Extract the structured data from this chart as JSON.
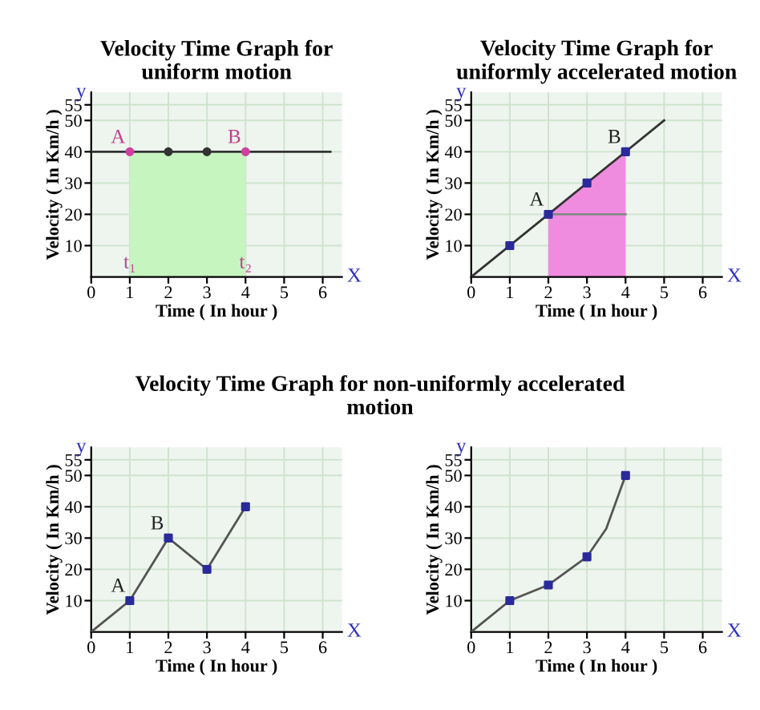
{
  "chart_data": [
    {
      "type": "line",
      "title": "Velocity Time Graph for\nuniform motion",
      "xlabel": "Time ( In hour )",
      "ylabel": "Velocity ( In Km/h )",
      "xlim": [
        0,
        6.5
      ],
      "ylim": [
        0,
        59
      ],
      "xticks": [
        0,
        1,
        2,
        3,
        4,
        5,
        6
      ],
      "yticks": [
        10,
        20,
        30,
        40,
        50,
        55
      ],
      "grid": true,
      "series": [
        {
          "type": "area",
          "x": [
            1,
            4
          ],
          "values": [
            40,
            40
          ],
          "color": "#c6f5c0"
        },
        {
          "x": [
            0,
            6.2
          ],
          "values": [
            40,
            40
          ],
          "color": "#333333",
          "marker": "none"
        },
        {
          "type": "scatter",
          "x": [
            1,
            2,
            3,
            4
          ],
          "values": [
            40,
            40,
            40,
            40
          ],
          "colors": [
            "#d040a0",
            "#333333",
            "#333333",
            "#d040a0"
          ],
          "marker": "circle"
        }
      ],
      "annotations": [
        {
          "text": "A",
          "x": 1,
          "y": 40
        },
        {
          "text": "B",
          "x": 4,
          "y": 40
        },
        {
          "text": "t₁",
          "x": 1,
          "y": 0
        },
        {
          "text": "t₂",
          "x": 4,
          "y": 0
        },
        "y",
        "X"
      ]
    },
    {
      "type": "line",
      "title": "Velocity Time Graph for\nuniformly accelerated motion",
      "xlabel": "Time ( In hour )",
      "ylabel": "Velocity ( In Km/h )",
      "xlim": [
        0,
        6.5
      ],
      "ylim": [
        0,
        59
      ],
      "xticks": [
        0,
        1,
        2,
        3,
        4,
        5,
        6
      ],
      "yticks": [
        10,
        20,
        30,
        40,
        50,
        55
      ],
      "grid": true,
      "series": [
        {
          "type": "area",
          "x": [
            2,
            4
          ],
          "values": [
            20,
            40
          ],
          "color": "#f08ce0"
        },
        {
          "x": [
            2,
            4
          ],
          "values": [
            20,
            20
          ],
          "color": "#888888",
          "marker": "none"
        },
        {
          "x": [
            0,
            5
          ],
          "values": [
            0,
            50
          ],
          "color": "#333333",
          "marker": "none"
        },
        {
          "type": "scatter",
          "x": [
            1,
            2,
            3,
            4
          ],
          "values": [
            10,
            20,
            30,
            40
          ],
          "color": "#2a2a9a",
          "marker": "square"
        }
      ],
      "annotations": [
        {
          "text": "A",
          "x": 2,
          "y": 20
        },
        {
          "text": "B",
          "x": 4,
          "y": 40
        },
        "y",
        "X"
      ]
    },
    {
      "type": "line",
      "title": "Velocity Time Graph for non-uniformly accelerated\nmotion",
      "xlabel": "Time ( In hour )",
      "ylabel": "Velocity ( In Km/h )",
      "xlim": [
        0,
        6.5
      ],
      "ylim": [
        0,
        59
      ],
      "xticks": [
        0,
        1,
        2,
        3,
        4,
        5,
        6
      ],
      "yticks": [
        10,
        20,
        30,
        40,
        50,
        55
      ],
      "grid": true,
      "series": [
        {
          "x": [
            0,
            1,
            2,
            3,
            4
          ],
          "values": [
            0,
            10,
            30,
            20,
            40
          ],
          "color": "#555555",
          "marker": "none"
        },
        {
          "type": "scatter",
          "x": [
            1,
            2,
            3,
            4
          ],
          "values": [
            10,
            30,
            20,
            40
          ],
          "color": "#2a2a9a",
          "marker": "square"
        }
      ],
      "annotations": [
        {
          "text": "A",
          "x": 1,
          "y": 10
        },
        {
          "text": "B",
          "x": 2,
          "y": 30
        },
        "y",
        "X"
      ]
    },
    {
      "type": "line",
      "xlabel": "Time ( In hour )",
      "ylabel": "Velocity ( In Km/h )",
      "xlim": [
        0,
        6.5
      ],
      "ylim": [
        0,
        59
      ],
      "xticks": [
        0,
        1,
        2,
        3,
        4,
        5,
        6
      ],
      "yticks": [
        10,
        20,
        30,
        40,
        50,
        55
      ],
      "grid": true,
      "series": [
        {
          "x": [
            0,
            1,
            2,
            3,
            3.5,
            4
          ],
          "values": [
            0,
            10,
            15,
            24,
            33,
            50
          ],
          "color": "#555555",
          "marker": "none"
        },
        {
          "type": "scatter",
          "x": [
            1,
            2,
            3,
            4
          ],
          "values": [
            10,
            15,
            24,
            50
          ],
          "color": "#2a2a9a",
          "marker": "square"
        }
      ],
      "annotations": [
        "y",
        "X"
      ]
    }
  ]
}
